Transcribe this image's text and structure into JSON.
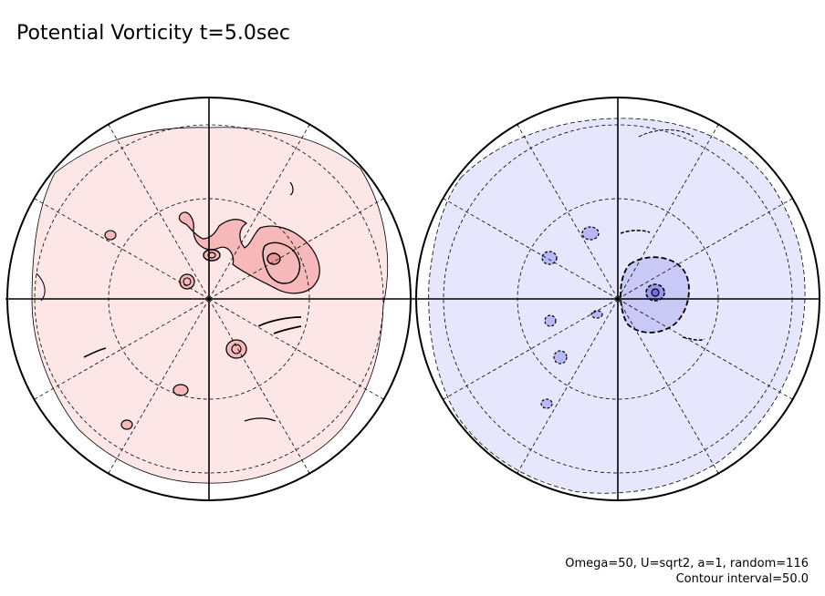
{
  "title": "Potential Vorticity t=5.0sec",
  "footer": {
    "params": "Omega=50, U=sqrt2, a=1, random=116",
    "contour": "Contour interval=50.0"
  },
  "colors": {
    "positive_fill": "#fde6e6",
    "positive_core": "#f6b8b8",
    "negative_fill": "#e6e6fd",
    "negative_core": "#b8b8f6",
    "line": "#000000"
  }
}
